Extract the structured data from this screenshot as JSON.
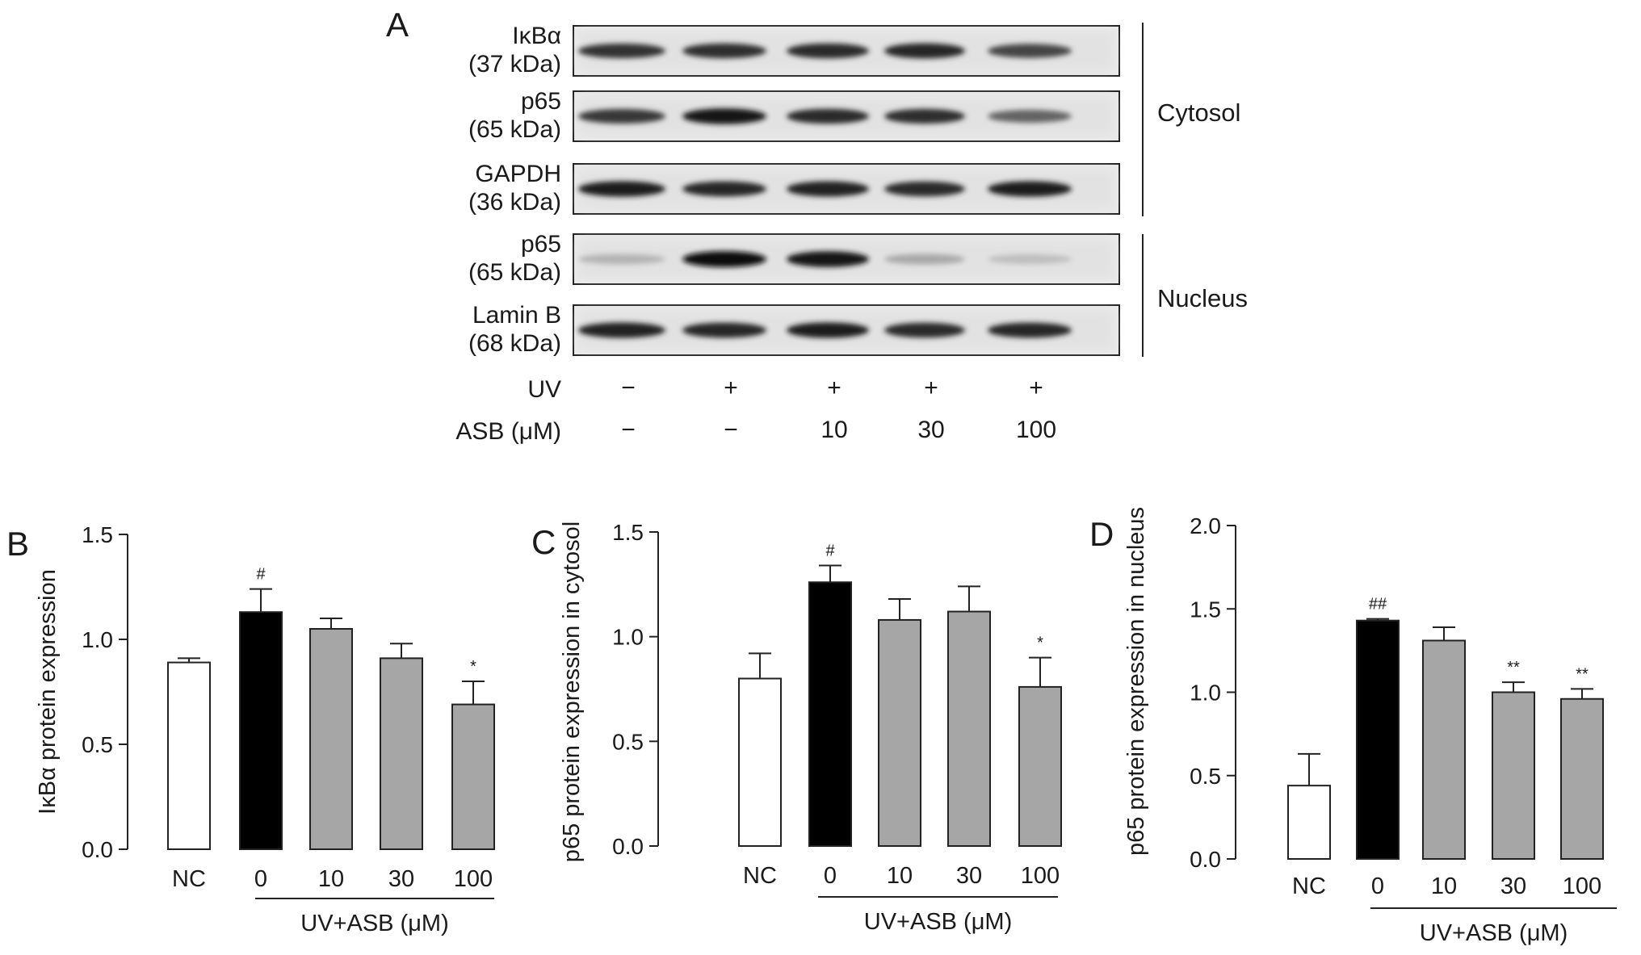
{
  "panel_a": {
    "letter": "A",
    "blots": [
      {
        "name": "IκBα",
        "size": "(37 kDa)",
        "bands": [
          0.82,
          0.84,
          0.86,
          0.88,
          0.74
        ]
      },
      {
        "name": "p65",
        "size": "(65 kDa)",
        "bands": [
          0.8,
          0.95,
          0.86,
          0.84,
          0.6
        ]
      },
      {
        "name": "GAPDH",
        "size": "(36 kDa)",
        "bands": [
          0.92,
          0.88,
          0.9,
          0.86,
          0.92
        ]
      },
      {
        "name": "p65",
        "size": "(65 kDa)",
        "bands": [
          0.25,
          0.98,
          0.96,
          0.3,
          0.2
        ]
      },
      {
        "name": "Lamin B",
        "size": "(68 kDa)",
        "bands": [
          0.9,
          0.88,
          0.92,
          0.86,
          0.88
        ]
      }
    ],
    "groups": [
      {
        "label": "Cytosol",
        "blot_indices": [
          0,
          1,
          2
        ]
      },
      {
        "label": "Nucleus",
        "blot_indices": [
          3,
          4
        ]
      }
    ],
    "conditions": [
      {
        "label": "UV",
        "values": [
          "−",
          "+",
          "+",
          "+",
          "+"
        ]
      },
      {
        "label": "ASB (μM)",
        "values": [
          "−",
          "−",
          "10",
          "30",
          "100"
        ]
      }
    ]
  },
  "chart_data": [
    {
      "panel": "B",
      "type": "bar",
      "categories": [
        "NC",
        "0",
        "10",
        "30",
        "100"
      ],
      "values": [
        0.89,
        1.13,
        1.05,
        0.91,
        0.69
      ],
      "errors": [
        0.02,
        0.11,
        0.05,
        0.07,
        0.11
      ],
      "bar_colors": [
        "#ffffff",
        "#000000",
        "#a6a6a6",
        "#a6a6a6",
        "#a6a6a6"
      ],
      "annotations": [
        "",
        "#",
        "",
        "",
        "*"
      ],
      "ylabel": "IκBα protein expression",
      "xlabel": "UV+ASB (μM)",
      "ylim": [
        0,
        1.5
      ],
      "yticks": [
        "0.0",
        "0.5",
        "1.0",
        "1.5"
      ]
    },
    {
      "panel": "C",
      "type": "bar",
      "categories": [
        "NC",
        "0",
        "10",
        "30",
        "100"
      ],
      "values": [
        0.8,
        1.26,
        1.08,
        1.12,
        0.76
      ],
      "errors": [
        0.12,
        0.08,
        0.1,
        0.12,
        0.14
      ],
      "bar_colors": [
        "#ffffff",
        "#000000",
        "#a6a6a6",
        "#a6a6a6",
        "#a6a6a6"
      ],
      "annotations": [
        "",
        "#",
        "",
        "",
        "*"
      ],
      "ylabel": "p65 protein expression in cytosol",
      "xlabel": "UV+ASB (μM)",
      "ylim": [
        0,
        1.5
      ],
      "yticks": [
        "0.0",
        "0.5",
        "1.0",
        "1.5"
      ]
    },
    {
      "panel": "D",
      "type": "bar",
      "categories": [
        "NC",
        "0",
        "10",
        "30",
        "100"
      ],
      "values": [
        0.44,
        1.43,
        1.31,
        1.0,
        0.96
      ],
      "errors": [
        0.19,
        0.01,
        0.08,
        0.06,
        0.06
      ],
      "bar_colors": [
        "#ffffff",
        "#000000",
        "#a6a6a6",
        "#a6a6a6",
        "#a6a6a6"
      ],
      "annotations": [
        "",
        "##",
        "",
        "**",
        "**"
      ],
      "ylabel": "p65 protein expression in nucleus",
      "xlabel": "UV+ASB (μM)",
      "ylim": [
        0,
        2.0
      ],
      "yticks": [
        "0.0",
        "0.5",
        "1.0",
        "1.5",
        "2.0"
      ]
    }
  ]
}
